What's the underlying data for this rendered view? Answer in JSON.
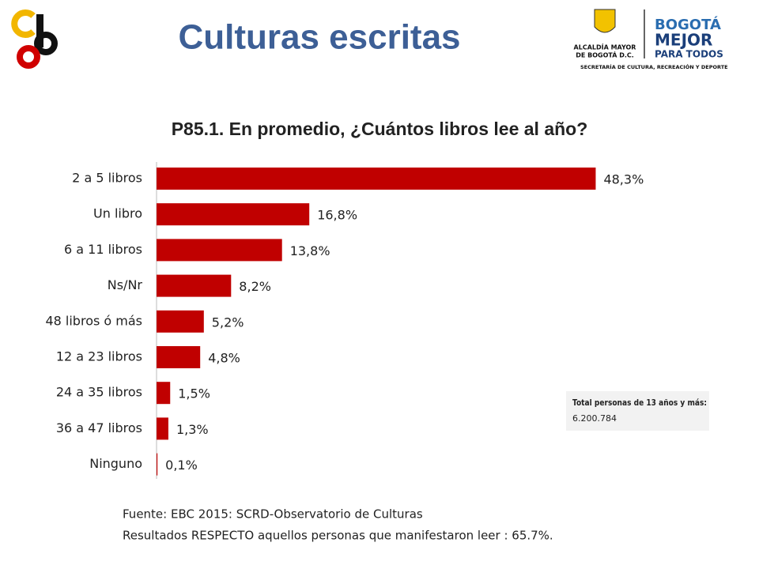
{
  "header": {
    "title": "Culturas escritas",
    "logo": {
      "line1": "ALCALDÍA MAYOR",
      "line2": "DE BOGOTÁ D.C.",
      "brand1": "BOGOTÁ",
      "brand2": "MEJOR",
      "brand3": "PARA TODOS",
      "department": "SECRETARÍA DE CULTURA, RECREACIÓN Y DEPORTE"
    }
  },
  "chart_data": {
    "type": "bar",
    "orientation": "horizontal",
    "title": "P85.1. En promedio, ¿Cuántos libros lee al año?",
    "categories": [
      "2 a 5 libros",
      "Un libro",
      "6 a 11 libros",
      "Ns/Nr",
      "48 libros ó más",
      "12 a 23 libros",
      "24 a 35 libros",
      "36 a 47 libros",
      "Ninguno"
    ],
    "values": [
      48.3,
      16.8,
      13.8,
      8.2,
      5.2,
      4.8,
      1.5,
      1.3,
      0.1
    ],
    "value_labels": [
      "48,3%",
      "16,8%",
      "13,8%",
      "8,2%",
      "5,2%",
      "4,8%",
      "1,5%",
      "1,3%",
      "0,1%"
    ],
    "color": "#c00000"
  },
  "note": {
    "label": "Total personas de 13 años y más:",
    "value": "6.200.784"
  },
  "footer": {
    "source": "Fuente: EBC 2015: SCRD-Observatorio de Culturas",
    "remark": "Resultados RESPECTO aquellos  personas que manifestaron leer : 65.7%."
  }
}
